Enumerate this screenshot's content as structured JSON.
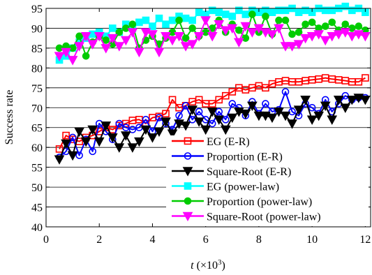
{
  "chart_data": {
    "type": "line",
    "xlabel_var": "t",
    "xlabel_unit": "(×10",
    "xlabel_exp": "3",
    "xlabel_close": ")",
    "ylabel": "Success rate",
    "xlim": [
      0,
      12.2
    ],
    "ylim": [
      40,
      95
    ],
    "xticks": [
      0,
      2,
      4,
      6,
      8,
      10,
      12
    ],
    "yticks": [
      40,
      45,
      50,
      55,
      60,
      65,
      70,
      75,
      80,
      85,
      90,
      95
    ],
    "grid": "horizontal",
    "legend_position": "lower-right",
    "x": [
      0.5,
      0.75,
      1.0,
      1.25,
      1.5,
      1.75,
      2.0,
      2.25,
      2.5,
      2.75,
      3.0,
      3.25,
      3.5,
      3.75,
      4.0,
      4.25,
      4.5,
      4.75,
      5.0,
      5.25,
      5.5,
      5.75,
      6.0,
      6.25,
      6.5,
      6.75,
      7.0,
      7.25,
      7.5,
      7.75,
      8.0,
      8.25,
      8.5,
      8.75,
      9.0,
      9.25,
      9.5,
      9.75,
      10.0,
      10.25,
      10.5,
      10.75,
      11.0,
      11.25,
      11.5,
      11.75,
      12.0
    ],
    "series": [
      {
        "name": "EG (E-R)",
        "color": "#ff0000",
        "marker": "square",
        "filled": false,
        "values": [
          59.6,
          63.0,
          62.0,
          61.5,
          62.5,
          63.0,
          64.0,
          65.0,
          64.5,
          65.5,
          66.0,
          66.8,
          67.0,
          66.0,
          67.5,
          67.8,
          68.5,
          72.0,
          70.0,
          70.5,
          71.5,
          72.0,
          71.0,
          71.0,
          72.0,
          73.0,
          74.0,
          75.0,
          74.5,
          75.0,
          75.5,
          75.0,
          76.0,
          76.5,
          76.8,
          76.5,
          76.5,
          76.8,
          77.0,
          77.2,
          77.5,
          77.2,
          77.0,
          76.8,
          76.5,
          76.5,
          77.5
        ]
      },
      {
        "name": "Proportion (E-R)",
        "color": "#0000ff",
        "marker": "circle",
        "filled": false,
        "values": [
          57.5,
          59.0,
          62.5,
          58.0,
          62.0,
          59.0,
          66.0,
          64.0,
          62.0,
          66.0,
          65.0,
          64.5,
          65.0,
          67.0,
          64.0,
          67.5,
          66.0,
          64.5,
          68.0,
          70.5,
          67.0,
          69.0,
          67.0,
          66.0,
          69.0,
          67.0,
          71.0,
          70.0,
          68.0,
          71.5,
          68.5,
          71.0,
          69.0,
          69.5,
          74.0,
          69.0,
          68.0,
          71.0,
          70.0,
          68.5,
          72.0,
          69.0,
          71.0,
          73.0,
          72.0,
          72.5,
          72.5
        ]
      },
      {
        "name": "Square-Root (E-R)",
        "color": "#000000",
        "marker": "triangle-down",
        "filled": true,
        "values": [
          57.0,
          61.0,
          58.0,
          64.0,
          61.5,
          64.5,
          61.5,
          65.5,
          62.5,
          60.0,
          63.0,
          60.0,
          61.5,
          64.5,
          62.5,
          64.0,
          66.5,
          63.5,
          66.0,
          65.5,
          69.5,
          66.5,
          64.5,
          69.0,
          67.0,
          64.5,
          67.5,
          69.0,
          68.5,
          70.5,
          68.0,
          68.0,
          67.5,
          69.0,
          68.0,
          66.0,
          69.5,
          72.0,
          67.0,
          68.0,
          70.5,
          67.0,
          72.0,
          70.0,
          72.0,
          72.5,
          72.0
        ]
      },
      {
        "name": "EG (power-law)",
        "color": "#00ffff",
        "marker": "square",
        "filled": true,
        "values": [
          82.0,
          83.0,
          85.0,
          86.5,
          87.5,
          88.5,
          89.0,
          88.0,
          90.0,
          89.0,
          91.0,
          90.0,
          91.5,
          92.0,
          90.5,
          92.5,
          91.0,
          92.0,
          93.0,
          92.5,
          92.0,
          94.0,
          93.5,
          94.5,
          94.0,
          93.5,
          93.0,
          94.5,
          93.5,
          94.5,
          94.0,
          94.5,
          94.0,
          94.5,
          94.5,
          95.0,
          94.0,
          94.5,
          94.0,
          95.0,
          94.5,
          94.5,
          95.0,
          95.5,
          94.5,
          95.0,
          94.0
        ]
      },
      {
        "name": "Proportion (power-law)",
        "color": "#00cc00",
        "marker": "circle",
        "filled": true,
        "values": [
          85.0,
          85.5,
          85.0,
          88.0,
          83.0,
          86.5,
          88.0,
          87.0,
          86.0,
          89.0,
          90.0,
          91.0,
          85.0,
          87.0,
          88.0,
          86.0,
          87.5,
          89.0,
          92.0,
          87.5,
          90.0,
          88.0,
          89.0,
          90.0,
          92.0,
          89.0,
          91.0,
          89.5,
          87.5,
          93.5,
          89.0,
          93.0,
          88.5,
          92.0,
          92.0,
          88.5,
          89.0,
          91.0,
          91.5,
          90.0,
          90.5,
          91.5,
          89.5,
          91.0,
          90.0,
          90.5,
          89.5
        ]
      },
      {
        "name": "Square-Root (power-law)",
        "color": "#ff00ff",
        "marker": "triangle-down",
        "filled": true,
        "values": [
          83.0,
          84.0,
          82.0,
          85.5,
          88.0,
          86.0,
          88.0,
          85.0,
          87.5,
          85.5,
          87.0,
          89.0,
          84.0,
          89.0,
          88.5,
          84.0,
          88.0,
          87.0,
          88.0,
          85.5,
          86.0,
          88.0,
          92.0,
          88.0,
          91.0,
          89.5,
          90.0,
          86.5,
          90.5,
          89.0,
          90.0,
          89.0,
          88.5,
          90.0,
          85.5,
          85.5,
          86.0,
          87.5,
          88.0,
          88.5,
          87.0,
          88.0,
          88.5,
          89.0,
          88.0,
          88.5,
          88.0
        ]
      }
    ]
  }
}
